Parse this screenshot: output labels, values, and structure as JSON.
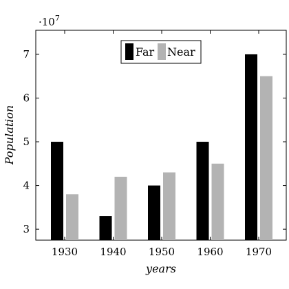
{
  "chart_data": {
    "type": "bar",
    "title": "",
    "xlabel": "years",
    "ylabel": "Population",
    "y_multiplier_label": "·10",
    "y_multiplier_exponent": "7",
    "categories": [
      "1930",
      "1940",
      "1950",
      "1960",
      "1970"
    ],
    "series": [
      {
        "name": "Far",
        "color": "#000000",
        "values": [
          5.0,
          3.3,
          4.0,
          5.0,
          7.0
        ]
      },
      {
        "name": "Near",
        "color": "#b3b3b3",
        "values": [
          3.8,
          4.2,
          4.3,
          4.5,
          6.5
        ]
      }
    ],
    "ylim": [
      2.75,
      7.55
    ],
    "yticks": [
      3,
      4,
      5,
      6,
      7
    ],
    "ytick_labels": [
      "3",
      "4",
      "5",
      "6",
      "7"
    ],
    "grid": false,
    "legend_position": "top-center"
  }
}
